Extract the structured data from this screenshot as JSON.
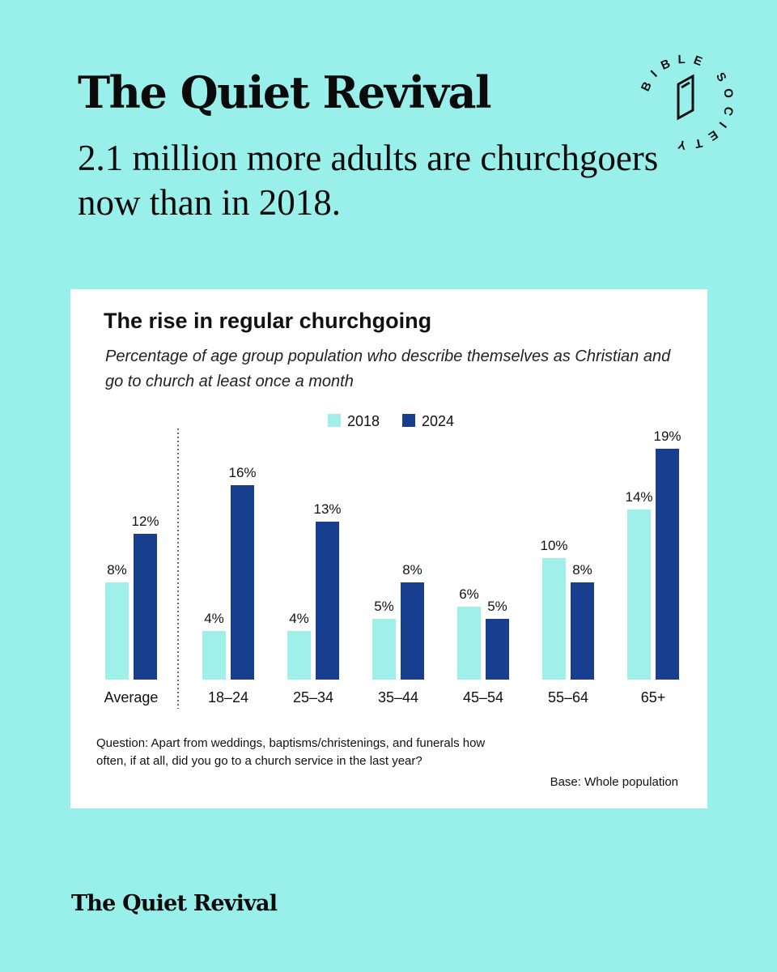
{
  "headline": "The Quiet Revival",
  "subheadline": "2.1 million more adults are churchgoers now than in 2018.",
  "logo": {
    "text": "BIBLE SOCIETY",
    "icon": "book-icon",
    "color": "#111111"
  },
  "chart_data": {
    "type": "bar",
    "title": "The rise in regular churchgoing",
    "subtitle": "Percentage of age group population who describe themselves as Christian and go to church at least once a month",
    "categories": [
      "Average",
      "18–24",
      "25–34",
      "35–44",
      "45–54",
      "55–64",
      "65+"
    ],
    "series": [
      {
        "name": "2018",
        "color": "#9ef0e9",
        "values": [
          8,
          4,
          4,
          5,
          6,
          10,
          14
        ],
        "labels": [
          "8%",
          "4%",
          "4%",
          "5%",
          "6%",
          "10%",
          "14%"
        ]
      },
      {
        "name": "2024",
        "color": "#173e8f",
        "values": [
          12,
          16,
          13,
          8,
          5,
          8,
          19
        ],
        "labels": [
          "12%",
          "16%",
          "13%",
          "8%",
          "5%",
          "8%",
          "19%"
        ]
      }
    ],
    "ylim": [
      0,
      20
    ],
    "xlabel": "",
    "ylabel": "",
    "grid": false,
    "legend_position": "top-center",
    "divider_after_first_category": true
  },
  "notes": {
    "question": "Question: Apart from weddings, baptisms/christenings, and funerals how often, if at all, did you go to a church service in the last year?",
    "base": "Base: Whole population"
  },
  "footer": {
    "brand": "The Quiet Revival"
  }
}
